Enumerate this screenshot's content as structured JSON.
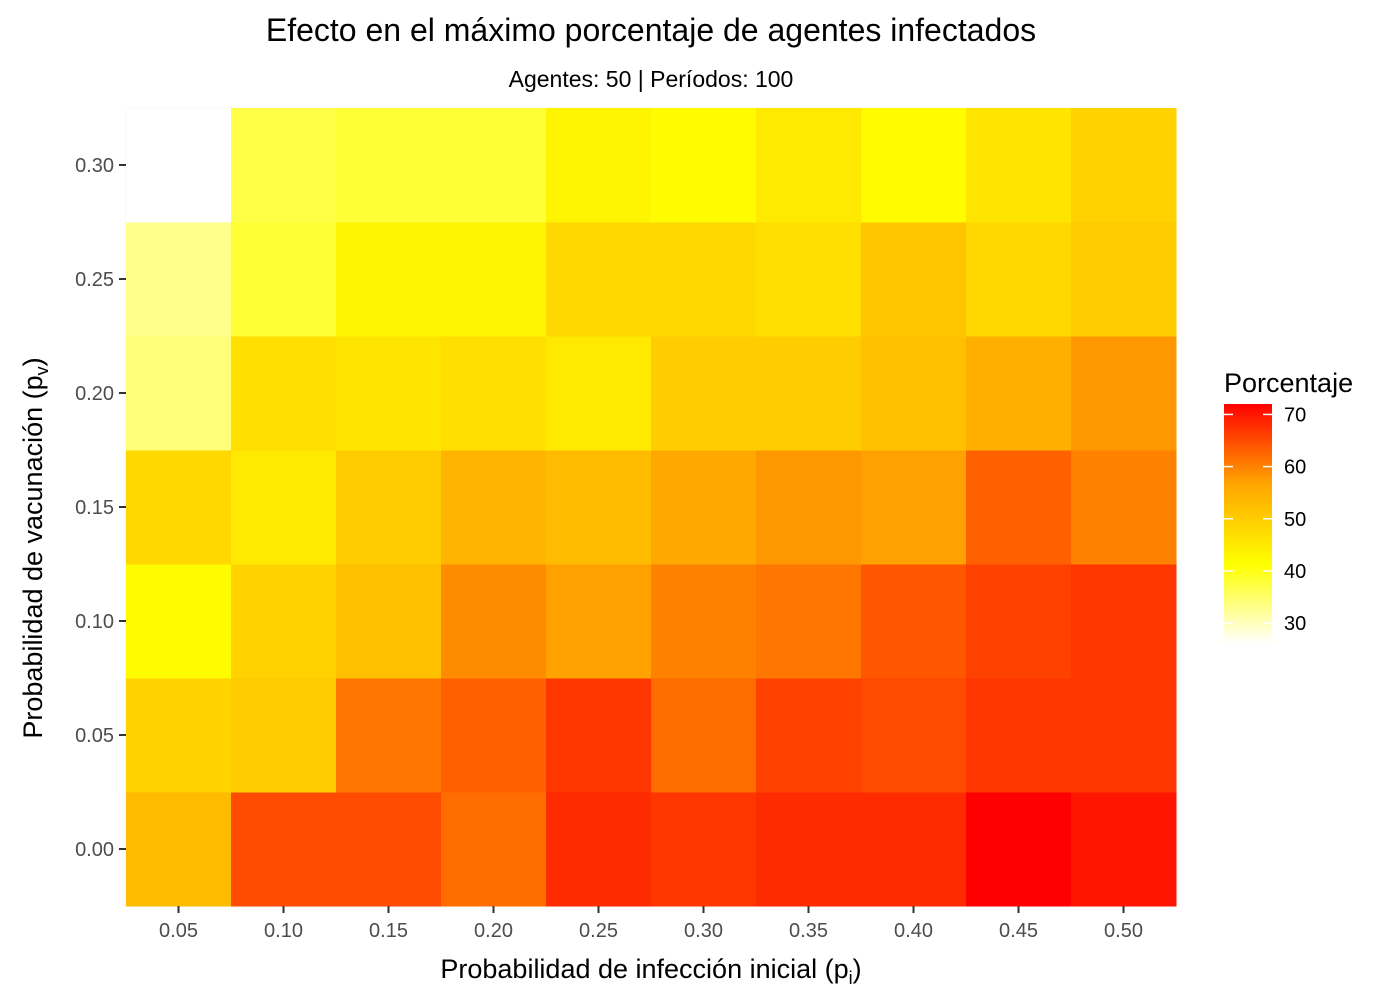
{
  "chart_data": {
    "type": "heatmap",
    "title": "Efecto en el máximo porcentaje de agentes infectados",
    "subtitle": "Agentes: 50 | Períodos: 100",
    "xlabel": {
      "main": "Probabilidad de infección inicial  (p",
      "sub": "i",
      "close": ")"
    },
    "ylabel": {
      "main": "Probabilidad de vacunación  (p",
      "sub": "v",
      "close": ")"
    },
    "x": [
      0.05,
      0.1,
      0.15,
      0.2,
      0.25,
      0.3,
      0.35,
      0.4,
      0.45,
      0.5
    ],
    "x_tick_labels": [
      "0.05",
      "0.10",
      "0.15",
      "0.20",
      "0.25",
      "0.30",
      "0.35",
      "0.40",
      "0.45",
      "0.50"
    ],
    "y": [
      0.0,
      0.05,
      0.1,
      0.15,
      0.2,
      0.25,
      0.3
    ],
    "y_tick_labels": [
      "0.00",
      "0.05",
      "0.10",
      "0.15",
      "0.20",
      "0.25",
      "0.30"
    ],
    "values": [
      [
        53,
        65,
        65,
        62,
        68,
        67,
        68,
        68,
        72,
        70
      ],
      [
        49,
        50,
        61,
        63,
        67,
        62,
        66,
        65,
        67,
        67
      ],
      [
        42,
        49,
        52,
        59,
        57,
        60,
        61,
        64,
        66,
        67
      ],
      [
        48,
        45,
        50,
        54,
        53,
        56,
        58,
        57,
        63,
        60
      ],
      [
        34,
        47,
        46,
        47,
        45,
        50,
        50,
        52,
        55,
        58
      ],
      [
        33,
        38,
        43,
        43,
        48,
        48,
        47,
        51,
        48,
        50
      ],
      [
        26,
        37,
        38,
        38,
        43,
        42,
        45,
        42,
        46,
        49
      ]
    ],
    "xlim": [
      0.025,
      0.525
    ],
    "ylim": [
      -0.025,
      0.325
    ],
    "grid": true,
    "legend": {
      "title": "Porcentaje",
      "placement": "right",
      "ticks": [
        30,
        40,
        50,
        60,
        70
      ],
      "min": 26,
      "max": 72,
      "colors": [
        "#ffffff",
        "#ffff00",
        "#ffa500",
        "#ff0000"
      ]
    },
    "colors": {
      "panel_background": "#ebebeb",
      "grid_major": "#ffffff",
      "grid_minor": "#f5f5f5",
      "tick_mark": "#333333"
    }
  }
}
